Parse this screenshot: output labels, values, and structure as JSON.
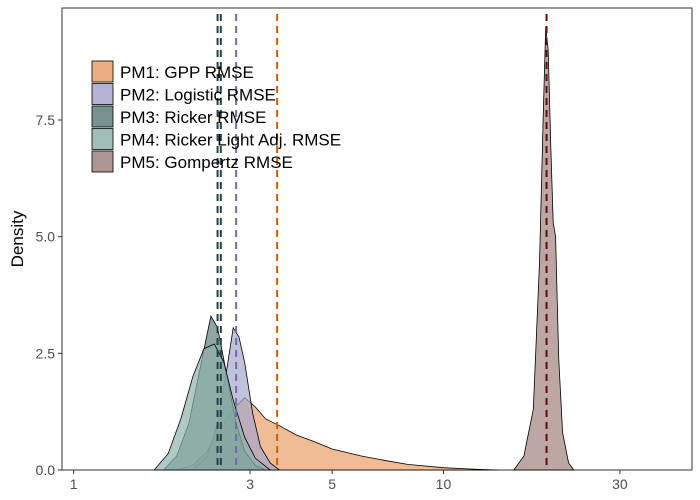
{
  "chart_data": {
    "type": "area",
    "title": "",
    "xlabel": "",
    "ylabel": "Density",
    "x_scale": "log10",
    "xlim": [
      0.93,
      47
    ],
    "ylim": [
      0,
      9.9
    ],
    "grid": false,
    "legend_position": "top-left",
    "x_ticks": [
      {
        "value": 1,
        "label": "1"
      },
      {
        "value": 3,
        "label": "3"
      },
      {
        "value": 5,
        "label": "5"
      },
      {
        "value": 10,
        "label": "10"
      },
      {
        "value": 30,
        "label": "30"
      }
    ],
    "y_ticks": [
      {
        "value": 0,
        "label": "0.0"
      },
      {
        "value": 2.5,
        "label": "2.5"
      },
      {
        "value": 5,
        "label": "5.0"
      },
      {
        "value": 7.5,
        "label": "7.5"
      }
    ],
    "series": [
      {
        "name": "PM1: GPP RMSE",
        "fill": "#e8a06a",
        "line": "#d55e00",
        "mean": 3.55,
        "points": [
          [
            1.9,
            0
          ],
          [
            2.1,
            0.1
          ],
          [
            2.3,
            0.4
          ],
          [
            2.5,
            0.9
          ],
          [
            2.7,
            1.3
          ],
          [
            2.9,
            1.55
          ],
          [
            3.1,
            1.35
          ],
          [
            3.3,
            1.1
          ],
          [
            3.6,
            0.95
          ],
          [
            4,
            0.75
          ],
          [
            4.5,
            0.6
          ],
          [
            5,
            0.45
          ],
          [
            6,
            0.3
          ],
          [
            7,
            0.2
          ],
          [
            8,
            0.12
          ],
          [
            10,
            0.05
          ],
          [
            12,
            0.02
          ],
          [
            14,
            0
          ]
        ]
      },
      {
        "name": "PM2: Logistic RMSE",
        "fill": "#a8a6cc",
        "line": "#6f6aa8",
        "mean": 2.75,
        "points": [
          [
            2.1,
            0
          ],
          [
            2.3,
            0.3
          ],
          [
            2.45,
            1.0
          ],
          [
            2.6,
            2.2
          ],
          [
            2.7,
            3.05
          ],
          [
            2.8,
            2.85
          ],
          [
            2.9,
            2.3
          ],
          [
            3.05,
            1.2
          ],
          [
            3.2,
            0.5
          ],
          [
            3.4,
            0.15
          ],
          [
            3.6,
            0
          ]
        ]
      },
      {
        "name": "PM3: Ricker RMSE",
        "fill": "#5f7f7c",
        "line": "#23404a",
        "mean": 2.45,
        "points": [
          [
            1.75,
            0
          ],
          [
            1.9,
            0.3
          ],
          [
            2.05,
            1.0
          ],
          [
            2.2,
            2.2
          ],
          [
            2.35,
            3.3
          ],
          [
            2.45,
            3.05
          ],
          [
            2.6,
            2.0
          ],
          [
            2.75,
            1.0
          ],
          [
            2.9,
            0.4
          ],
          [
            3.1,
            0.1
          ],
          [
            3.3,
            0
          ]
        ]
      },
      {
        "name": "PM4: Ricker Light Adj. RMSE",
        "fill": "#8fb2aa",
        "line": "#23404a",
        "mean": 2.5,
        "points": [
          [
            1.65,
            0
          ],
          [
            1.8,
            0.35
          ],
          [
            1.95,
            1.1
          ],
          [
            2.1,
            2.0
          ],
          [
            2.25,
            2.6
          ],
          [
            2.4,
            2.7
          ],
          [
            2.55,
            2.3
          ],
          [
            2.7,
            1.5
          ],
          [
            2.9,
            0.7
          ],
          [
            3.1,
            0.25
          ],
          [
            3.4,
            0
          ]
        ]
      },
      {
        "name": "PM5: Gompertz RMSE",
        "fill": "#a0827e",
        "line": "#5c1010",
        "mean": 19.0,
        "points": [
          [
            15.5,
            0
          ],
          [
            16.5,
            0.3
          ],
          [
            17.5,
            1.3
          ],
          [
            18.2,
            4.5
          ],
          [
            18.6,
            7.5
          ],
          [
            18.9,
            9.5
          ],
          [
            19.2,
            9.0
          ],
          [
            19.5,
            7.0
          ],
          [
            19.8,
            5.3
          ],
          [
            20.1,
            5.0
          ],
          [
            20.5,
            2.4
          ],
          [
            21,
            0.8
          ],
          [
            21.8,
            0.15
          ],
          [
            22.5,
            0
          ]
        ]
      }
    ]
  }
}
